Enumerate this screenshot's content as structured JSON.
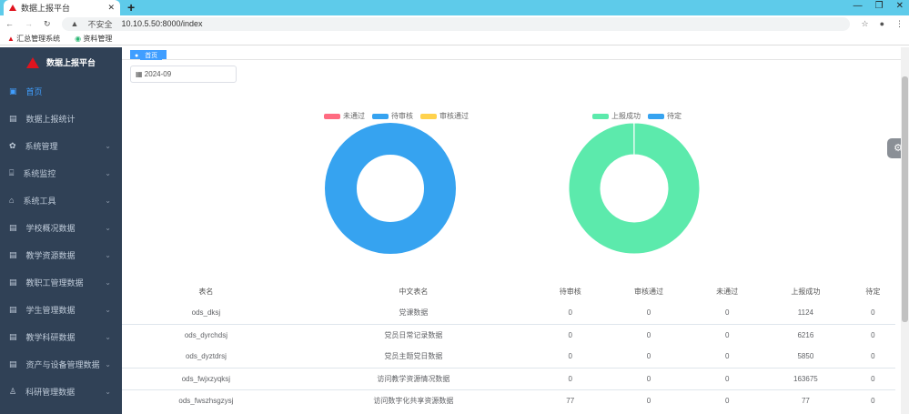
{
  "browser": {
    "tab_title": "数据上报平台",
    "url_warning": "不安全",
    "url": "10.10.5.50:8000/index",
    "bookmarks": [
      "汇总管理系统",
      "资料管理"
    ]
  },
  "sidebar": {
    "title": "数据上报平台",
    "items": [
      {
        "label": "首页",
        "icon": "dashboard-icon",
        "active": true
      },
      {
        "label": "数据上报统计",
        "icon": "table-icon"
      },
      {
        "label": "系统管理",
        "icon": "gear-icon",
        "chevron": true
      },
      {
        "label": "系统监控",
        "icon": "monitor-icon",
        "chevron": true
      },
      {
        "label": "系统工具",
        "icon": "tool-icon",
        "chevron": true
      },
      {
        "label": "学校概况数据",
        "icon": "table-icon",
        "chevron": true
      },
      {
        "label": "教学资源数据",
        "icon": "table-icon",
        "chevron": true
      },
      {
        "label": "教职工管理数据",
        "icon": "table-icon",
        "chevron": true
      },
      {
        "label": "学生管理数据",
        "icon": "table-icon",
        "chevron": true
      },
      {
        "label": "教学科研数据",
        "icon": "table-icon",
        "chevron": true
      },
      {
        "label": "资产与设备管理数据",
        "icon": "table-icon",
        "chevron": true
      },
      {
        "label": "科研管理数据",
        "icon": "flask-icon",
        "chevron": true
      }
    ]
  },
  "main": {
    "tag": "首页",
    "date": "2024-09",
    "chart1": {
      "legend": [
        {
          "name": "未通过",
          "color": "#ff6b81"
        },
        {
          "name": "待审核",
          "color": "#36a3f0"
        },
        {
          "name": "审核通过",
          "color": "#ffd24d"
        }
      ],
      "values": [
        0,
        77,
        0
      ]
    },
    "chart2": {
      "legend": [
        {
          "name": "上报成功",
          "color": "#5ceaac"
        },
        {
          "name": "待定",
          "color": "#36a3f0"
        }
      ],
      "values": [
        176942,
        77
      ]
    },
    "table": {
      "headers": [
        "表名",
        "中文表名",
        "待审核",
        "审核通过",
        "未通过",
        "上报成功",
        "待定"
      ],
      "rows": [
        [
          "ods_dksj",
          "党课数据",
          "0",
          "0",
          "0",
          "1124",
          "0"
        ],
        [
          "ods_dyrchdsj",
          "党员日常记录数据",
          "0",
          "0",
          "0",
          "6216",
          "0"
        ],
        [
          "ods_dyztdrsj",
          "党员主题党日数据",
          "0",
          "0",
          "0",
          "5850",
          "0"
        ],
        [
          "ods_fwjxzyqksj",
          "访问教学资源情况数据",
          "0",
          "0",
          "0",
          "163675",
          "0"
        ],
        [
          "ods_fwszhsgzysj",
          "访问数字化共享资源数据",
          "77",
          "0",
          "0",
          "77",
          "0"
        ]
      ]
    }
  }
}
